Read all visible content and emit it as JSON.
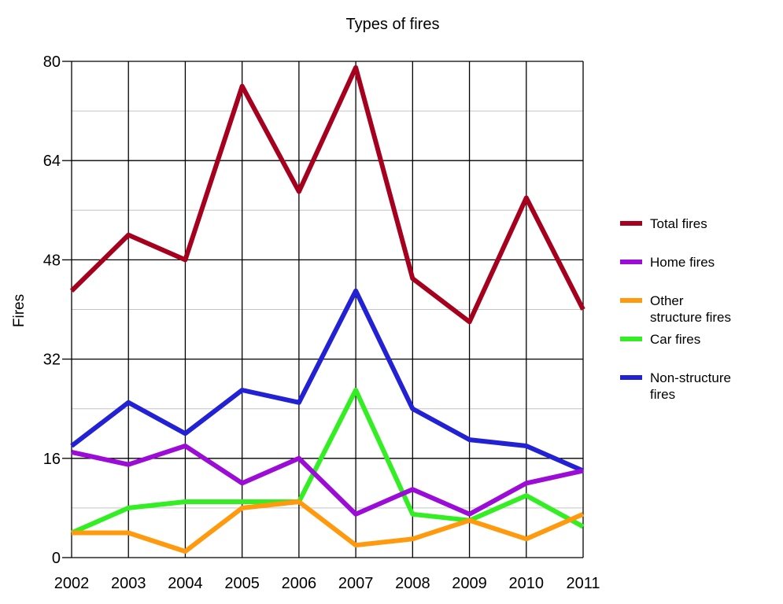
{
  "chart_data": {
    "type": "line",
    "title": "Types of fires",
    "xlabel": "",
    "ylabel": "Fires",
    "categories": [
      "2002",
      "2003",
      "2004",
      "2005",
      "2006",
      "2007",
      "2008",
      "2009",
      "2010",
      "2011"
    ],
    "ylim": [
      0,
      80
    ],
    "yticks": [
      "0",
      "16",
      "32",
      "48",
      "64",
      "80"
    ],
    "grid": true,
    "legend_position": "right",
    "series": [
      {
        "name": "Total fires",
        "legend_lines": [
          "Total fires"
        ],
        "color": "#a5001e",
        "values": [
          43,
          52,
          48,
          76,
          59,
          79,
          45,
          38,
          58,
          40
        ]
      },
      {
        "name": "Home fires",
        "legend_lines": [
          "Home fires"
        ],
        "color": "#9b0dd6",
        "values": [
          17,
          15,
          18,
          12,
          16,
          7,
          11,
          7,
          12,
          14
        ]
      },
      {
        "name": "Other structure fires",
        "legend_lines": [
          "Other",
          "structure fires"
        ],
        "color": "#ff9a0e",
        "values": [
          4,
          4,
          1,
          8,
          9,
          2,
          3,
          6,
          3,
          7
        ]
      },
      {
        "name": "Car fires",
        "legend_lines": [
          "Car fires"
        ],
        "color": "#33ee22",
        "values": [
          4,
          8,
          9,
          9,
          9,
          27,
          7,
          6,
          10,
          5
        ]
      },
      {
        "name": "Non-structure fires",
        "legend_lines": [
          "Non-structure",
          "fires"
        ],
        "color": "#2222d4",
        "values": [
          18,
          25,
          20,
          27,
          25,
          43,
          24,
          19,
          18,
          14
        ]
      }
    ]
  }
}
